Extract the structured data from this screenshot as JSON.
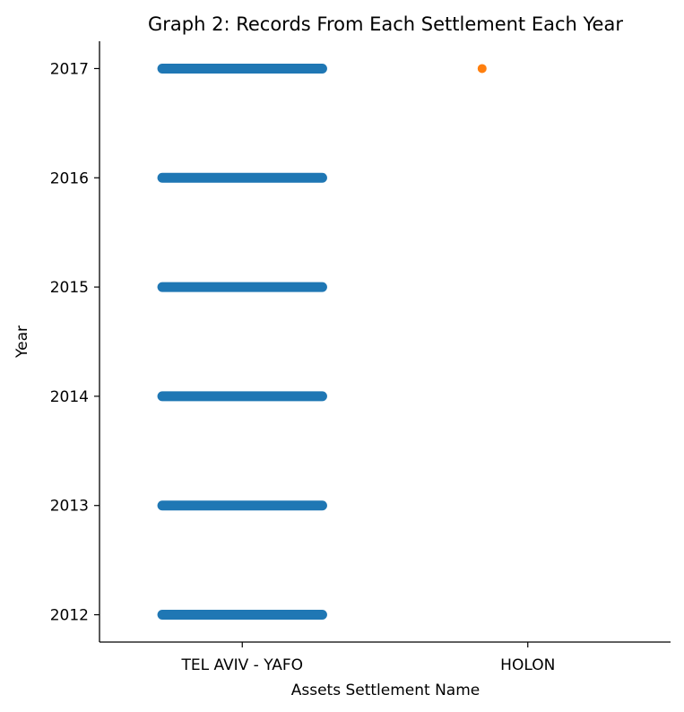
{
  "chart_data": {
    "type": "scatter",
    "style": "strip",
    "title": "Graph 2: Records From Each Settlement Each Year",
    "xlabel": "Assets Settlement Name",
    "ylabel": "Year",
    "categories": [
      "TEL AVIV - YAFO",
      "HOLON"
    ],
    "y_ticks": [
      2012,
      2013,
      2014,
      2015,
      2016,
      2017
    ],
    "ylim": [
      2011.75,
      2017.25
    ],
    "grid": false,
    "legend": "none",
    "series": [
      {
        "category": "TEL AVIV - YAFO",
        "color": "#1f77b4",
        "years": [
          2012,
          2013,
          2014,
          2015,
          2016,
          2017
        ],
        "jitter_range": [
          -0.28,
          0.28
        ]
      },
      {
        "category": "HOLON",
        "color": "#ff7f0e",
        "years": [
          2017
        ],
        "jitter_range": [
          -0.16,
          -0.16
        ]
      }
    ]
  }
}
